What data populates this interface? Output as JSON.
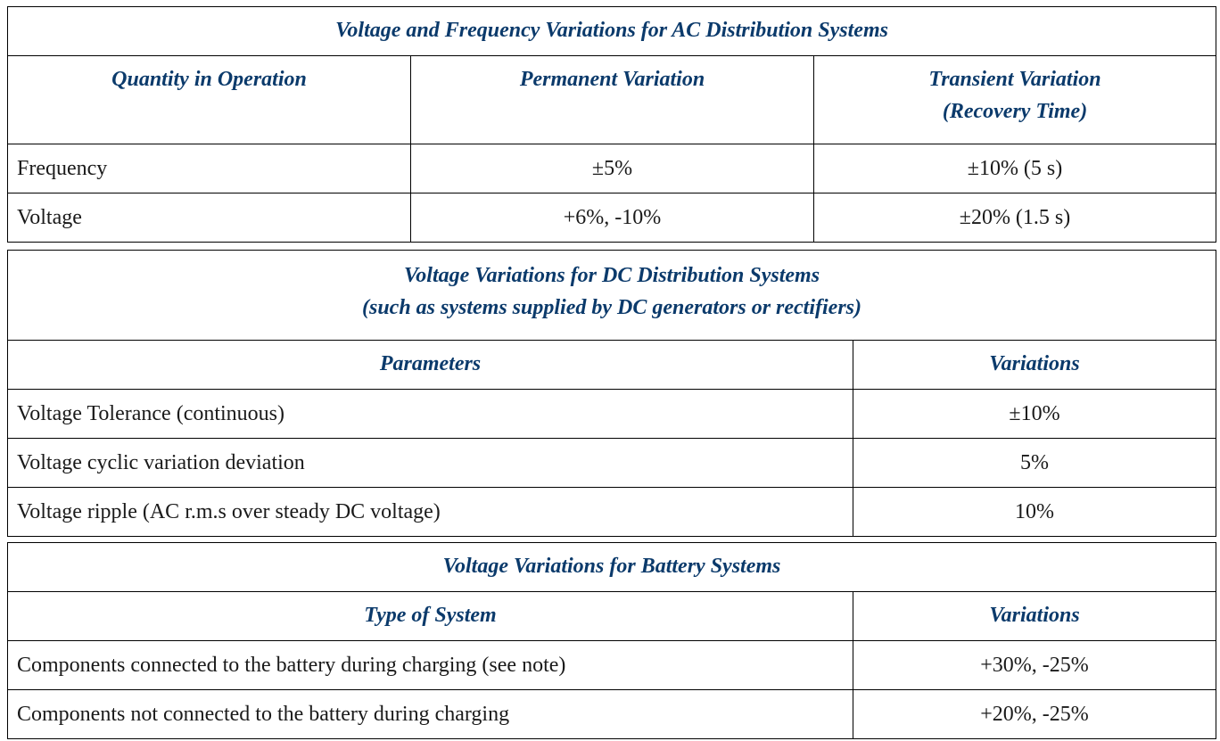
{
  "ac_table": {
    "title": "Voltage and Frequency Variations for AC Distribution Systems",
    "headers": [
      "Quantity in Operation",
      "Permanent Variation",
      "Transient Variation",
      "(Recovery Time)"
    ],
    "rows": [
      [
        "Frequency",
        "±5%",
        "±10% (5 s)"
      ],
      [
        "Voltage",
        "+6%, -10%",
        "±20% (1.5 s)"
      ]
    ]
  },
  "dc_table": {
    "title_line1": "Voltage Variations for DC Distribution Systems",
    "title_line2": "(such as systems supplied by DC generators or rectifiers)",
    "headers": [
      "Parameters",
      "Variations"
    ],
    "rows": [
      [
        "Voltage Tolerance (continuous)",
        "±10%"
      ],
      [
        "Voltage cyclic variation deviation",
        "5%"
      ],
      [
        "Voltage ripple (AC r.m.s over steady DC voltage)",
        "10%"
      ]
    ]
  },
  "battery_table": {
    "title": "Voltage Variations for Battery Systems",
    "headers": [
      "Type of System",
      "Variations"
    ],
    "rows": [
      [
        "Components connected to the battery during charging (see note)",
        "+30%, -25%"
      ],
      [
        "Components not connected to the battery during charging",
        "+20%, -25%"
      ]
    ]
  }
}
